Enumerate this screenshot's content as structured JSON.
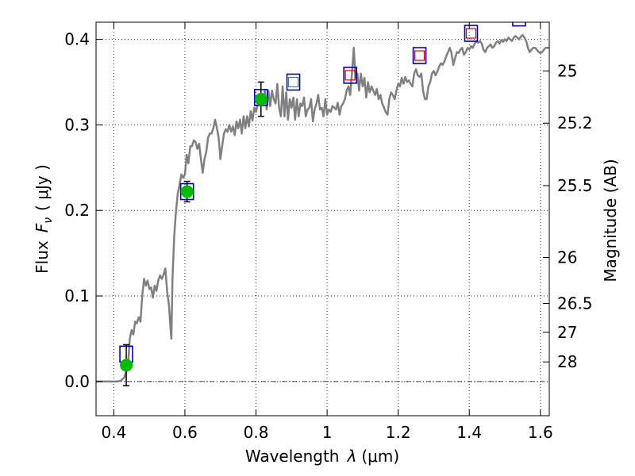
{
  "chart_data": {
    "type": "scatter",
    "xlabel": "Wavelength",
    "xlabel_symbol": "λ",
    "xlabel_unit": "(μm)",
    "ylabel_prefix": "Flux",
    "ylabel_symbol": "F",
    "ylabel_sub": "ν",
    "ylabel_unit": "( μJy )",
    "y2label": "Magnitude (AB)",
    "xlim": [
      0.35,
      1.625
    ],
    "ylim": [
      -0.04,
      0.42
    ],
    "grid": true,
    "x_ticks": [
      0.4,
      0.6,
      0.8,
      1.0,
      1.2,
      1.4,
      1.6
    ],
    "x_tick_labels": [
      "0.4",
      "0.6",
      "0.8",
      "1",
      "1.2",
      "1.4",
      "1.6"
    ],
    "y_ticks": [
      0.0,
      0.1,
      0.2,
      0.3,
      0.4
    ],
    "y_tick_labels": [
      "0.0",
      "0.1",
      "0.2",
      "0.3",
      "0.4"
    ],
    "mag_ticks": [
      {
        "label": "25",
        "flux": 0.363
      },
      {
        "label": "25.2",
        "flux": 0.302
      },
      {
        "label": "25.5",
        "flux": 0.229
      },
      {
        "label": "26",
        "flux": 0.145
      },
      {
        "label": "26.5",
        "flux": 0.0912
      },
      {
        "label": "27",
        "flux": 0.0575
      },
      {
        "label": "28",
        "flux": 0.0229
      }
    ],
    "colors": {
      "spectrum": "#808080",
      "photometry": "#00bb00",
      "model_box": "#0000cc",
      "inner_green": "#00bb00",
      "inner_red": "#dd0000",
      "errorbar": "#000000",
      "zero_line": "#000000"
    },
    "series": [
      {
        "kind": "spectrum",
        "points": [
          [
            0.35,
            0.0
          ],
          [
            0.41,
            0.0
          ],
          [
            0.42,
            0.001
          ],
          [
            0.43,
            0.005
          ],
          [
            0.44,
            0.02
          ],
          [
            0.445,
            0.05
          ],
          [
            0.45,
            0.06
          ],
          [
            0.455,
            0.055
          ],
          [
            0.46,
            0.07
          ],
          [
            0.465,
            0.068
          ],
          [
            0.47,
            0.075
          ],
          [
            0.475,
            0.07
          ],
          [
            0.48,
            0.1
          ],
          [
            0.485,
            0.12
          ],
          [
            0.49,
            0.112
          ],
          [
            0.495,
            0.118
          ],
          [
            0.5,
            0.108
          ],
          [
            0.505,
            0.11
          ],
          [
            0.51,
            0.098
          ],
          [
            0.515,
            0.112
          ],
          [
            0.52,
            0.106
          ],
          [
            0.525,
            0.118
          ],
          [
            0.53,
            0.124
          ],
          [
            0.535,
            0.12
          ],
          [
            0.54,
            0.125
          ],
          [
            0.545,
            0.132
          ],
          [
            0.55,
            0.105
          ],
          [
            0.555,
            0.09
          ],
          [
            0.56,
            0.06
          ],
          [
            0.562,
            0.05
          ],
          [
            0.565,
            0.12
          ],
          [
            0.57,
            0.17
          ],
          [
            0.575,
            0.2
          ],
          [
            0.58,
            0.22
          ],
          [
            0.585,
            0.23
          ],
          [
            0.59,
            0.242
          ],
          [
            0.595,
            0.238
          ],
          [
            0.6,
            0.242
          ],
          [
            0.605,
            0.265
          ],
          [
            0.61,
            0.255
          ],
          [
            0.615,
            0.275
          ],
          [
            0.62,
            0.275
          ],
          [
            0.625,
            0.282
          ],
          [
            0.63,
            0.28
          ],
          [
            0.635,
            0.272
          ],
          [
            0.64,
            0.278
          ],
          [
            0.645,
            0.26
          ],
          [
            0.65,
            0.244
          ],
          [
            0.655,
            0.26
          ],
          [
            0.66,
            0.268
          ],
          [
            0.665,
            0.285
          ],
          [
            0.67,
            0.29
          ],
          [
            0.675,
            0.29
          ],
          [
            0.68,
            0.296
          ],
          [
            0.685,
            0.306
          ],
          [
            0.69,
            0.296
          ],
          [
            0.695,
            0.285
          ],
          [
            0.7,
            0.26
          ],
          [
            0.705,
            0.276
          ],
          [
            0.71,
            0.29
          ],
          [
            0.715,
            0.295
          ],
          [
            0.72,
            0.292
          ],
          [
            0.725,
            0.3
          ],
          [
            0.73,
            0.292
          ],
          [
            0.735,
            0.298
          ],
          [
            0.74,
            0.288
          ],
          [
            0.745,
            0.304
          ],
          [
            0.75,
            0.296
          ],
          [
            0.755,
            0.306
          ],
          [
            0.76,
            0.29
          ],
          [
            0.765,
            0.31
          ],
          [
            0.77,
            0.296
          ],
          [
            0.775,
            0.31
          ],
          [
            0.78,
            0.298
          ],
          [
            0.785,
            0.316
          ],
          [
            0.79,
            0.305
          ],
          [
            0.795,
            0.32
          ],
          [
            0.8,
            0.315
          ],
          [
            0.805,
            0.325
          ],
          [
            0.81,
            0.33
          ],
          [
            0.815,
            0.335
          ],
          [
            0.82,
            0.328
          ],
          [
            0.825,
            0.34
          ],
          [
            0.83,
            0.318
          ],
          [
            0.835,
            0.34
          ],
          [
            0.84,
            0.322
          ],
          [
            0.845,
            0.34
          ],
          [
            0.85,
            0.33
          ],
          [
            0.855,
            0.325
          ],
          [
            0.86,
            0.348
          ],
          [
            0.865,
            0.32
          ],
          [
            0.87,
            0.31
          ],
          [
            0.875,
            0.345
          ],
          [
            0.88,
            0.31
          ],
          [
            0.885,
            0.338
          ],
          [
            0.89,
            0.306
          ],
          [
            0.895,
            0.33
          ],
          [
            0.9,
            0.32
          ],
          [
            0.905,
            0.332
          ],
          [
            0.91,
            0.306
          ],
          [
            0.915,
            0.33
          ],
          [
            0.92,
            0.31
          ],
          [
            0.925,
            0.325
          ],
          [
            0.93,
            0.322
          ],
          [
            0.935,
            0.332
          ],
          [
            0.94,
            0.31
          ],
          [
            0.945,
            0.318
          ],
          [
            0.95,
            0.32
          ],
          [
            0.955,
            0.33
          ],
          [
            0.96,
            0.304
          ],
          [
            0.965,
            0.318
          ],
          [
            0.97,
            0.325
          ],
          [
            0.975,
            0.335
          ],
          [
            0.98,
            0.318
          ],
          [
            0.985,
            0.32
          ],
          [
            0.99,
            0.31
          ],
          [
            0.995,
            0.33
          ],
          [
            1.0,
            0.312
          ],
          [
            1.005,
            0.318
          ],
          [
            1.01,
            0.315
          ],
          [
            1.015,
            0.322
          ],
          [
            1.02,
            0.32
          ],
          [
            1.025,
            0.318
          ],
          [
            1.03,
            0.326
          ],
          [
            1.035,
            0.312
          ],
          [
            1.04,
            0.322
          ],
          [
            1.045,
            0.325
          ],
          [
            1.05,
            0.33
          ],
          [
            1.055,
            0.34
          ],
          [
            1.06,
            0.345
          ],
          [
            1.065,
            0.335
          ],
          [
            1.07,
            0.36
          ],
          [
            1.075,
            0.39
          ],
          [
            1.08,
            0.355
          ],
          [
            1.085,
            0.36
          ],
          [
            1.09,
            0.34
          ],
          [
            1.095,
            0.36
          ],
          [
            1.1,
            0.345
          ],
          [
            1.105,
            0.355
          ],
          [
            1.11,
            0.332
          ],
          [
            1.115,
            0.35
          ],
          [
            1.12,
            0.338
          ],
          [
            1.125,
            0.345
          ],
          [
            1.13,
            0.34
          ],
          [
            1.135,
            0.335
          ],
          [
            1.14,
            0.342
          ],
          [
            1.145,
            0.33
          ],
          [
            1.15,
            0.335
          ],
          [
            1.155,
            0.325
          ],
          [
            1.16,
            0.32
          ],
          [
            1.165,
            0.315
          ],
          [
            1.17,
            0.312
          ],
          [
            1.175,
            0.33
          ],
          [
            1.18,
            0.338
          ],
          [
            1.185,
            0.335
          ],
          [
            1.19,
            0.33
          ],
          [
            1.195,
            0.34
          ],
          [
            1.2,
            0.348
          ],
          [
            1.205,
            0.345
          ],
          [
            1.21,
            0.355
          ],
          [
            1.215,
            0.348
          ],
          [
            1.22,
            0.356
          ],
          [
            1.225,
            0.35
          ],
          [
            1.23,
            0.352
          ],
          [
            1.235,
            0.348
          ],
          [
            1.24,
            0.345
          ],
          [
            1.245,
            0.36
          ],
          [
            1.25,
            0.365
          ],
          [
            1.255,
            0.358
          ],
          [
            1.26,
            0.356
          ],
          [
            1.265,
            0.36
          ],
          [
            1.27,
            0.34
          ],
          [
            1.275,
            0.33
          ],
          [
            1.28,
            0.33
          ],
          [
            1.285,
            0.345
          ],
          [
            1.29,
            0.35
          ],
          [
            1.295,
            0.36
          ],
          [
            1.3,
            0.363
          ],
          [
            1.305,
            0.358
          ],
          [
            1.31,
            0.362
          ],
          [
            1.315,
            0.368
          ],
          [
            1.32,
            0.372
          ],
          [
            1.325,
            0.37
          ],
          [
            1.33,
            0.374
          ],
          [
            1.335,
            0.38
          ],
          [
            1.34,
            0.385
          ],
          [
            1.345,
            0.39
          ],
          [
            1.35,
            0.384
          ],
          [
            1.355,
            0.37
          ],
          [
            1.36,
            0.378
          ],
          [
            1.365,
            0.385
          ],
          [
            1.37,
            0.384
          ],
          [
            1.375,
            0.388
          ],
          [
            1.38,
            0.39
          ],
          [
            1.385,
            0.382
          ],
          [
            1.39,
            0.385
          ],
          [
            1.395,
            0.39
          ],
          [
            1.4,
            0.388
          ],
          [
            1.405,
            0.392
          ],
          [
            1.41,
            0.39
          ],
          [
            1.415,
            0.395
          ],
          [
            1.42,
            0.398
          ],
          [
            1.425,
            0.396
          ],
          [
            1.43,
            0.398
          ],
          [
            1.435,
            0.395
          ],
          [
            1.44,
            0.388
          ],
          [
            1.445,
            0.385
          ],
          [
            1.45,
            0.39
          ],
          [
            1.455,
            0.392
          ],
          [
            1.46,
            0.394
          ],
          [
            1.465,
            0.39
          ],
          [
            1.47,
            0.392
          ],
          [
            1.475,
            0.396
          ],
          [
            1.48,
            0.398
          ],
          [
            1.485,
            0.395
          ],
          [
            1.49,
            0.399
          ],
          [
            1.495,
            0.397
          ],
          [
            1.5,
            0.4
          ],
          [
            1.505,
            0.398
          ],
          [
            1.51,
            0.402
          ],
          [
            1.515,
            0.4
          ],
          [
            1.52,
            0.398
          ],
          [
            1.525,
            0.402
          ],
          [
            1.53,
            0.404
          ],
          [
            1.535,
            0.402
          ],
          [
            1.54,
            0.4
          ],
          [
            1.545,
            0.403
          ],
          [
            1.55,
            0.405
          ],
          [
            1.555,
            0.402
          ],
          [
            1.56,
            0.398
          ],
          [
            1.565,
            0.39
          ],
          [
            1.57,
            0.385
          ],
          [
            1.575,
            0.388
          ],
          [
            1.58,
            0.39
          ],
          [
            1.585,
            0.39
          ],
          [
            1.59,
            0.388
          ],
          [
            1.595,
            0.385
          ],
          [
            1.6,
            0.384
          ],
          [
            1.605,
            0.385
          ],
          [
            1.61,
            0.388
          ],
          [
            1.615,
            0.39
          ],
          [
            1.62,
            0.39
          ],
          [
            1.625,
            0.39
          ]
        ]
      },
      {
        "kind": "photometry",
        "points": [
          {
            "x": 0.435,
            "y": 0.019,
            "err": 0.024
          },
          {
            "x": 0.606,
            "y": 0.222,
            "err": 0.012
          },
          {
            "x": 0.814,
            "y": 0.33,
            "err": 0.02
          }
        ]
      },
      {
        "kind": "model",
        "points": [
          {
            "x": 0.435,
            "y": 0.032,
            "inner": "none"
          },
          {
            "x": 0.606,
            "y": 0.222,
            "inner": "none"
          },
          {
            "x": 0.814,
            "y": 0.332,
            "inner": "none"
          },
          {
            "x": 0.905,
            "y": 0.35,
            "inner": "green"
          },
          {
            "x": 1.065,
            "y": 0.358,
            "inner": "red"
          },
          {
            "x": 1.26,
            "y": 0.381,
            "inner": "red"
          },
          {
            "x": 1.405,
            "y": 0.407,
            "inner": "red"
          },
          {
            "x": 1.54,
            "y": 0.425,
            "inner": "none"
          }
        ]
      }
    ]
  }
}
